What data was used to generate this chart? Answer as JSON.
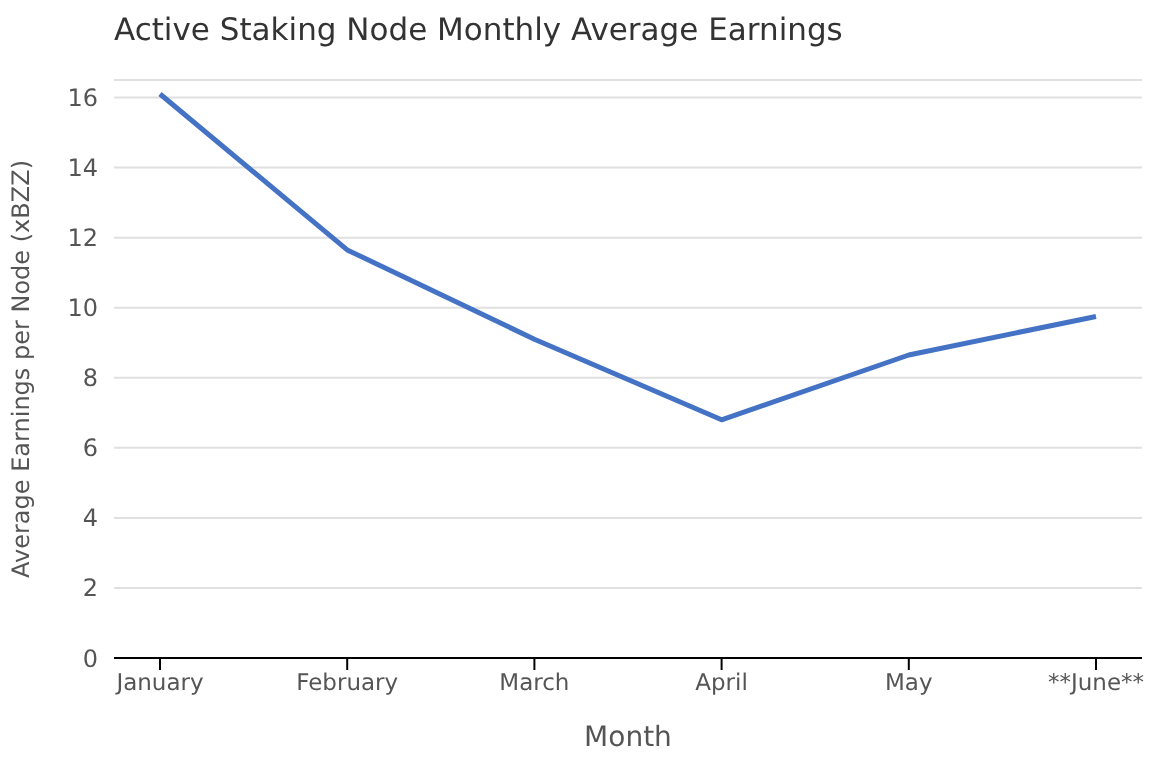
{
  "chart_data": {
    "type": "line",
    "title": "Active Staking Node Monthly Average Earnings",
    "xlabel": "Month",
    "ylabel": "Average Earnings per Node (xBZZ)",
    "categories": [
      "January",
      "February",
      "March",
      "April",
      "May",
      "**June**"
    ],
    "series": [
      {
        "color": "#4472c4",
        "values": [
          16.1,
          11.65,
          9.1,
          6.8,
          8.65,
          9.75
        ]
      }
    ],
    "ylim": [
      0,
      16.5
    ],
    "yticks": [
      0,
      2,
      4,
      6,
      8,
      10,
      12,
      14,
      16
    ],
    "grid": "y",
    "legend": false,
    "marker": "none",
    "line_style": "solid"
  }
}
